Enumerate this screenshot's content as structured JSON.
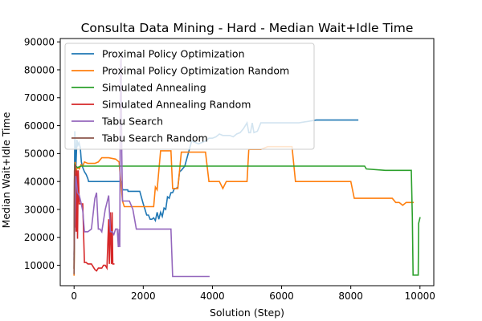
{
  "chart_data": {
    "type": "line",
    "title": "Consulta Data Mining - Hard - Median Wait+Idle Time",
    "xlabel": "Solution (Step)",
    "ylabel": "Median Wait+Idle Time",
    "xlim": [
      -400,
      10400
    ],
    "ylim": [
      2700,
      91200
    ],
    "xticks": [
      0,
      2000,
      4000,
      6000,
      8000,
      10000
    ],
    "xtick_labels": [
      "0",
      "2000",
      "4000",
      "6000",
      "8000",
      "10000"
    ],
    "yticks": [
      10000,
      20000,
      30000,
      40000,
      50000,
      60000,
      70000,
      80000,
      90000
    ],
    "ytick_labels": [
      "10000",
      "20000",
      "30000",
      "40000",
      "50000",
      "60000",
      "70000",
      "80000",
      "90000"
    ],
    "grid": false,
    "legend_position": "upper-left",
    "series": [
      {
        "name": "Proximal Policy Optimization",
        "color": "#1f77b4",
        "x": [
          0,
          20,
          40,
          50,
          80,
          110,
          140,
          180,
          210,
          250,
          300,
          350,
          400,
          420,
          500,
          600,
          800,
          1000,
          1200,
          1380,
          1400,
          1500,
          1550,
          1560,
          1700,
          1800,
          1900,
          2000,
          2050,
          2100,
          2150,
          2200,
          2250,
          2300,
          2350,
          2400,
          2450,
          2500,
          2550,
          2600,
          2650,
          2700,
          2750,
          2800,
          2850,
          2900,
          2950,
          3000,
          3050,
          3100,
          3200,
          3400,
          3600,
          3800,
          3900,
          4000,
          4100,
          4200,
          4300,
          4400,
          4500,
          4600,
          4700,
          4800,
          4900,
          5000,
          5050,
          5100,
          5150,
          5200,
          5300,
          5400,
          5600,
          5800,
          6000,
          6200,
          6500,
          7000,
          7100,
          7500,
          8000,
          8200
        ],
        "y": [
          12000,
          58000,
          52000,
          44000,
          55000,
          53000,
          54000,
          52000,
          47000,
          45000,
          43500,
          42500,
          41000,
          40000,
          40000,
          40000,
          40000,
          40000,
          40000,
          40000,
          37000,
          37000,
          37000,
          36500,
          36500,
          36500,
          36500,
          32000,
          30000,
          28000,
          28000,
          26500,
          26500,
          27000,
          26000,
          29000,
          26500,
          29000,
          27500,
          30500,
          30000,
          34500,
          34000,
          36000,
          36000,
          37500,
          37500,
          38000,
          43500,
          44000,
          45500,
          54500,
          53500,
          54500,
          55500,
          55500,
          56000,
          57000,
          56500,
          56500,
          56500,
          56000,
          57000,
          57500,
          59000,
          61000,
          57500,
          57500,
          61000,
          57500,
          58000,
          61000,
          61000,
          61000,
          61000,
          61000,
          61000,
          62000,
          62000,
          62000,
          62000,
          62000
        ]
      },
      {
        "name": "Proximal Policy Optimization Random",
        "color": "#ff7f0e",
        "x": [
          0,
          30,
          60,
          100,
          150,
          200,
          250,
          300,
          400,
          500,
          600,
          700,
          800,
          1000,
          1200,
          1300,
          1400,
          1450,
          1500,
          1600,
          1700,
          1800,
          1900,
          2000,
          2100,
          2200,
          2300,
          2350,
          2400,
          2500,
          2600,
          2700,
          2800,
          2850,
          2900,
          3000,
          3100,
          3200,
          3400,
          3600,
          3800,
          3900,
          4000,
          4200,
          4300,
          4400,
          4600,
          4800,
          5000,
          5050,
          5100,
          5200,
          5400,
          5600,
          5800,
          6000,
          6200,
          6300,
          6400,
          6600,
          6800,
          7000,
          7200,
          7400,
          7600,
          7800,
          8000,
          8100,
          8200,
          8400,
          8600,
          8800,
          9000,
          9200,
          9300,
          9400,
          9500,
          9600,
          9700,
          9800
        ],
        "y": [
          6500,
          47000,
          44000,
          45000,
          44500,
          46000,
          45500,
          47000,
          46500,
          46500,
          46500,
          47000,
          48500,
          48500,
          48000,
          47000,
          33000,
          31000,
          31000,
          31000,
          31000,
          31000,
          31000,
          31000,
          31000,
          31000,
          31000,
          38000,
          37000,
          51000,
          51000,
          51000,
          51000,
          37500,
          37500,
          37500,
          50500,
          50500,
          50500,
          50500,
          50500,
          40000,
          40000,
          40000,
          37500,
          40000,
          40000,
          40000,
          40000,
          51500,
          51500,
          51500,
          51500,
          52500,
          52500,
          52500,
          52500,
          52500,
          40000,
          40000,
          40000,
          40000,
          40000,
          40000,
          40000,
          40000,
          40000,
          34000,
          34000,
          34000,
          34000,
          34000,
          34000,
          34000,
          32500,
          32500,
          31500,
          32500,
          32500,
          32500
        ]
      },
      {
        "name": "Simulated Annealing",
        "color": "#2ca02c",
        "x": [
          0,
          20,
          50,
          100,
          200,
          400,
          600,
          800,
          1000,
          1500,
          2000,
          3000,
          4000,
          5000,
          6000,
          7000,
          8000,
          8400,
          8450,
          9000,
          9500,
          9750,
          9780,
          9800,
          9900,
          9950,
          9960,
          10000
        ],
        "y": [
          9000,
          46000,
          45500,
          45000,
          45500,
          45500,
          45500,
          45500,
          45500,
          45500,
          45500,
          45500,
          45500,
          45500,
          45500,
          45500,
          45500,
          45500,
          44500,
          44000,
          44000,
          44000,
          27000,
          6500,
          6500,
          6500,
          25000,
          27000
        ]
      },
      {
        "name": "Simulated Annealing Random",
        "color": "#d62728",
        "x": [
          0,
          10,
          20,
          40,
          60,
          80,
          100,
          120,
          150,
          180,
          200,
          250,
          300,
          350,
          400,
          500,
          600,
          650,
          700,
          750,
          800,
          850,
          900,
          950,
          1000,
          1020,
          1050,
          1080,
          1100,
          1120,
          1150
        ],
        "y": [
          9000,
          44000,
          23500,
          46000,
          22000,
          44000,
          19500,
          44000,
          32000,
          32000,
          32000,
          32000,
          11000,
          11000,
          10500,
          10500,
          8500,
          8000,
          9000,
          9000,
          9000,
          10000,
          10000,
          9000,
          26500,
          10500,
          29000,
          10500,
          29000,
          10500,
          10500
        ]
      },
      {
        "name": "Tabu Search",
        "color": "#9467bd",
        "x": [
          0,
          50,
          100,
          150,
          200,
          250,
          300,
          350,
          400,
          500,
          600,
          650,
          700,
          750,
          800,
          900,
          1000,
          1050,
          1100,
          1150,
          1200,
          1250,
          1280,
          1300,
          1320,
          1340,
          1360,
          1380,
          1400,
          1500,
          1600,
          1700,
          1800,
          1900,
          2000,
          2200,
          2400,
          2600,
          2800,
          2850,
          3000,
          3200,
          3400,
          3600,
          3800,
          3900
        ],
        "y": [
          14000,
          42000,
          36000,
          35000,
          32500,
          29500,
          22000,
          22000,
          22000,
          23000,
          34000,
          36000,
          23000,
          23000,
          22000,
          30000,
          35000,
          22000,
          22000,
          21000,
          23000,
          23000,
          16500,
          23000,
          16500,
          80000,
          86000,
          50000,
          33000,
          33000,
          33000,
          30000,
          23000,
          23000,
          23000,
          23000,
          23000,
          23000,
          23000,
          6000,
          6000,
          6000,
          6000,
          6000,
          6000,
          6000
        ]
      },
      {
        "name": "Tabu Search Random",
        "color": "#8c564b",
        "x": [
          0,
          10,
          20,
          30,
          40
        ],
        "y": [
          7000,
          40000,
          46000,
          44000,
          45000
        ]
      }
    ]
  }
}
